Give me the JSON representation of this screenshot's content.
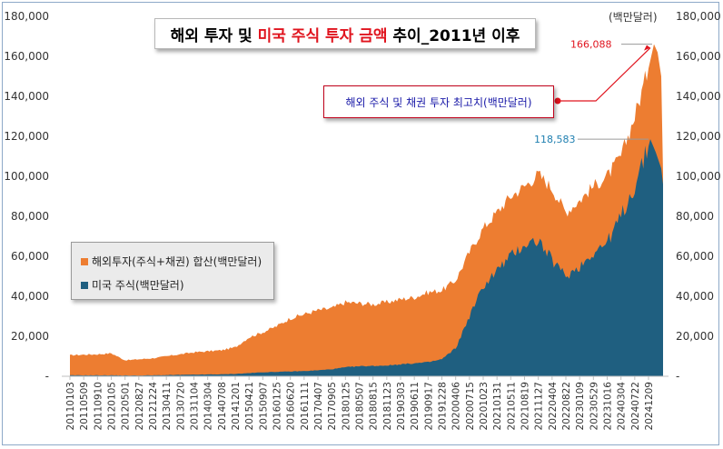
{
  "title": {
    "part1": "해외 투자 및",
    "part2": "미국 주식 투자 금액",
    "part3": "추이_2011년 이후"
  },
  "unit_label": "(백만달러)",
  "callout_text": "해외 주식 및 채권 투자 최고치(백만달러)",
  "annotations": {
    "peak_total": "166,088",
    "peak_us": "118,583"
  },
  "colors": {
    "total": "#ed7d31",
    "us": "#1f5f80",
    "annotation_red": "#e0141e",
    "annotation_blue": "#1f7fb0"
  },
  "chart_data": {
    "type": "area",
    "ylim": [
      0,
      180000
    ],
    "yticks": [
      "-",
      "20,000",
      "40,000",
      "60,000",
      "80,000",
      "100,000",
      "120,000",
      "140,000",
      "160,000",
      "180,000"
    ],
    "ytick_values": [
      0,
      20000,
      40000,
      60000,
      80000,
      100000,
      120000,
      140000,
      160000,
      180000
    ],
    "xtick_labels": [
      "20110103",
      "20110509",
      "20110910",
      "20120105",
      "20120501",
      "20120827",
      "20121224",
      "20130411",
      "20130720",
      "20131104",
      "20140304",
      "20140708",
      "20141201",
      "20150421",
      "20150907",
      "20160125",
      "20160620",
      "20161111",
      "20170407",
      "20170905",
      "20180125",
      "20180507",
      "20180815",
      "20181123",
      "20190303",
      "20190611",
      "20190917",
      "20191228",
      "20200406",
      "20200715",
      "20201023",
      "20210131",
      "20210511",
      "20210819",
      "20211127",
      "20220404",
      "20220822",
      "20230109",
      "20230529",
      "20231016",
      "20240304",
      "20240722",
      "20241209"
    ],
    "series": [
      {
        "name": "해외투자(주식+채권) 합산(백만달러)",
        "key": "total",
        "values": [
          10500,
          10800,
          11000,
          11500,
          8000,
          8500,
          9000,
          10000,
          11000,
          12000,
          12500,
          13000,
          14500,
          19500,
          22000,
          25000,
          29000,
          31000,
          33000,
          34000,
          37000,
          36500,
          36000,
          37000,
          38500,
          39500,
          42000,
          43000,
          48000,
          62000,
          74000,
          82000,
          90000,
          95000,
          101000,
          94000,
          82000,
          88000,
          95000,
          100000,
          110000,
          130000,
          154000
        ],
        "peak": 166088
      },
      {
        "name": "미국 주식(백만달러)",
        "key": "us",
        "values": [
          500,
          500,
          500,
          500,
          400,
          400,
          500,
          600,
          700,
          800,
          900,
          1000,
          1200,
          1600,
          2000,
          2200,
          2400,
          2600,
          3000,
          3500,
          4500,
          5000,
          5200,
          5400,
          6000,
          6500,
          7000,
          8500,
          14000,
          30000,
          45000,
          53000,
          60000,
          66000,
          68000,
          58000,
          50000,
          55000,
          62000,
          67000,
          80000,
          95000,
          115000
        ],
        "peak": 118583
      }
    ],
    "legend_position": "left-middle",
    "grid": false
  }
}
